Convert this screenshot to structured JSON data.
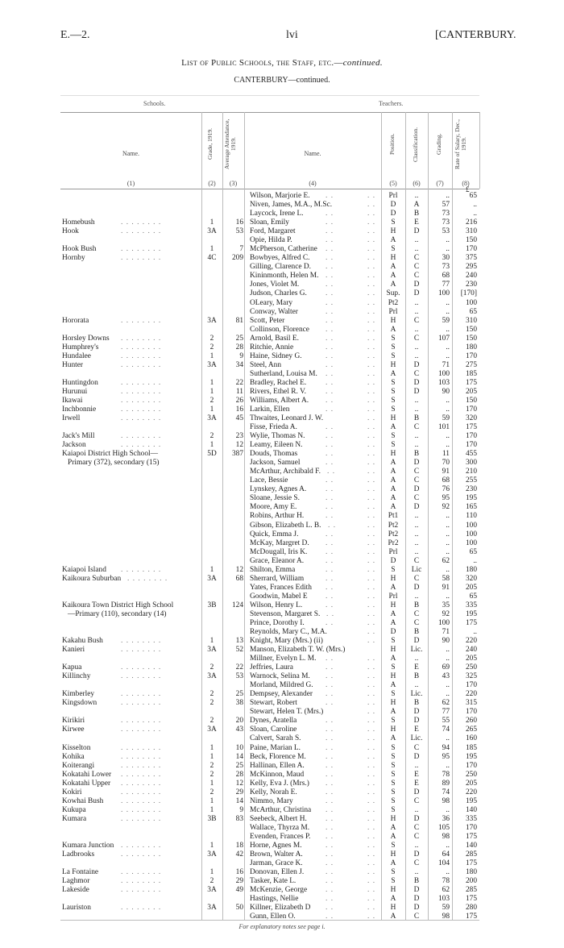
{
  "header": {
    "left": "E.—2.",
    "center": "lvi",
    "right": "[CANTERBURY."
  },
  "title": {
    "main": "List of Public Schools, the Staff, etc.—",
    "continued": "continued."
  },
  "subtitle": "CANTERBURY—continued.",
  "groups": {
    "schools": "Schools.",
    "teachers": "Teachers."
  },
  "columns": [
    {
      "label": "Name.",
      "num": "(1)"
    },
    {
      "label": "Grade, 1919.",
      "num": "(2)"
    },
    {
      "label": "Average Attendance, 1919.",
      "num": "(3)"
    },
    {
      "label": "Name.",
      "num": "(4)"
    },
    {
      "label": "Position.",
      "num": "(5)"
    },
    {
      "label": "Classification.",
      "num": "(6)"
    },
    {
      "label": "Grading.",
      "num": "(7)"
    },
    {
      "label": "Rate of Salary, Dec., 1919.",
      "num": "(8)"
    }
  ],
  "currency": "£",
  "rows": [
    {
      "school": "",
      "grade": "",
      "att": "",
      "teacher": "Wilson, Marjorie E.",
      "pos": "Prl",
      "cls": "..",
      "grd": "..",
      "sal": "65"
    },
    {
      "school": "",
      "grade": "",
      "att": "",
      "teacher": "Niven, James, M.A., M.Sc.",
      "pos": "D",
      "cls": "A",
      "grd": "57",
      "sal": ".."
    },
    {
      "school": "",
      "grade": "",
      "att": "",
      "teacher": "Laycock, Irene L.",
      "pos": "D",
      "cls": "B",
      "grd": "73",
      "sal": ".."
    },
    {
      "school": "Homebush",
      "grade": "1",
      "att": "16",
      "teacher": "Sloan, Emily",
      "pos": "S",
      "cls": "E",
      "grd": "73",
      "sal": "216"
    },
    {
      "school": "Hook",
      "grade": "3A",
      "att": "53",
      "teacher": "Ford, Margaret",
      "pos": "H",
      "cls": "D",
      "grd": "53",
      "sal": "310"
    },
    {
      "school": "",
      "grade": "",
      "att": "",
      "teacher": "Opie, Hilda P.",
      "pos": "A",
      "cls": "..",
      "grd": "..",
      "sal": "150"
    },
    {
      "school": "Hook Bush",
      "grade": "1",
      "att": "7",
      "teacher": "McPherson, Catherine",
      "pos": "S",
      "cls": "..",
      "grd": "..",
      "sal": "170"
    },
    {
      "school": "Hornby",
      "grade": "4C",
      "att": "209",
      "teacher": "Bowbyes, Alfred C.",
      "pos": "H",
      "cls": "C",
      "grd": "30",
      "sal": "375"
    },
    {
      "school": "",
      "grade": "",
      "att": "",
      "teacher": "Gilling, Clarence D.",
      "pos": "A",
      "cls": "C",
      "grd": "73",
      "sal": "295"
    },
    {
      "school": "",
      "grade": "",
      "att": "",
      "teacher": "Kininmonth, Helen M.",
      "pos": "A",
      "cls": "C",
      "grd": "68",
      "sal": "240"
    },
    {
      "school": "",
      "grade": "",
      "att": "",
      "teacher": "Jones, Violet M.",
      "pos": "A",
      "cls": "D",
      "grd": "77",
      "sal": "230"
    },
    {
      "school": "",
      "grade": "",
      "att": "",
      "teacher": "Judson, Charles G.",
      "pos": "Sup.",
      "cls": "D",
      "grd": "100",
      "sal": "[170]"
    },
    {
      "school": "",
      "grade": "",
      "att": "",
      "teacher": "OLeary, Mary",
      "pos": "Pt2",
      "cls": "..",
      "grd": "..",
      "sal": "100"
    },
    {
      "school": "",
      "grade": "",
      "att": "",
      "teacher": "Conway, Walter",
      "pos": "Prl",
      "cls": "..",
      "grd": "..",
      "sal": "65"
    },
    {
      "school": "Hororata",
      "grade": "3A",
      "att": "81",
      "teacher": "Scott, Peter",
      "pos": "H",
      "cls": "C",
      "grd": "59",
      "sal": "310"
    },
    {
      "school": "",
      "grade": "",
      "att": "",
      "teacher": "Collinson, Florence",
      "pos": "A",
      "cls": "..",
      "grd": "..",
      "sal": "150"
    },
    {
      "school": "Horsley Downs",
      "grade": "2",
      "att": "25",
      "teacher": "Arnold, Basil E.",
      "pos": "S",
      "cls": "C",
      "grd": "107",
      "sal": "150"
    },
    {
      "school": "Humphrey's",
      "grade": "2",
      "att": "28",
      "teacher": "Ritchie, Annie",
      "pos": "S",
      "cls": "..",
      "grd": "..",
      "sal": "180"
    },
    {
      "school": "Hundalee",
      "grade": "1",
      "att": "9",
      "teacher": "Haine, Sidney G.",
      "pos": "S",
      "cls": "..",
      "grd": "..",
      "sal": "170"
    },
    {
      "school": "Hunter",
      "grade": "3A",
      "att": "34",
      "teacher": "Steel, Ann",
      "pos": "H",
      "cls": "D",
      "grd": "71",
      "sal": "275"
    },
    {
      "school": "",
      "grade": "",
      "att": "",
      "teacher": "Sutherland, Louisa M.",
      "pos": "A",
      "cls": "C",
      "grd": "100",
      "sal": "185"
    },
    {
      "school": "Huntingdon",
      "grade": "1",
      "att": "22",
      "teacher": "Bradley, Rachel E.",
      "pos": "S",
      "cls": "D",
      "grd": "103",
      "sal": "175"
    },
    {
      "school": "Hurunui",
      "grade": "1",
      "att": "11",
      "teacher": "Rivers, Ethel R. V.",
      "pos": "S",
      "cls": "D",
      "grd": "90",
      "sal": "205"
    },
    {
      "school": "Ikawai",
      "grade": "2",
      "att": "26",
      "teacher": "Williams, Albert A.",
      "pos": "S",
      "cls": "..",
      "grd": "..",
      "sal": "150"
    },
    {
      "school": "Inchbonnie",
      "grade": "1",
      "att": "16",
      "teacher": "Larkin, Ellen",
      "pos": "S",
      "cls": "..",
      "grd": "..",
      "sal": "170"
    },
    {
      "school": "Irwell",
      "grade": "3A",
      "att": "45",
      "teacher": "Thwaites, Leonard J. W.",
      "pos": "H",
      "cls": "B",
      "grd": "59",
      "sal": "320"
    },
    {
      "school": "",
      "grade": "",
      "att": "",
      "teacher": "Fisse, Frieda A.",
      "pos": "A",
      "cls": "C",
      "grd": "101",
      "sal": "175"
    },
    {
      "school": "Jack's Mill",
      "grade": "2",
      "att": "23",
      "teacher": "Wylie, Thomas N.",
      "pos": "S",
      "cls": "..",
      "grd": "..",
      "sal": "170"
    },
    {
      "school": "Jackson",
      "grade": "1",
      "att": "12",
      "teacher": "Leamy, Eileen N.",
      "pos": "S",
      "cls": "..",
      "grd": "..",
      "sal": "170"
    },
    {
      "school": "Kaiapoi District High School—",
      "grade": "5D",
      "att": "387",
      "teacher": "Douds, Thomas",
      "pos": "H",
      "cls": "B",
      "grd": "11",
      "sal": "455",
      "noleader": true
    },
    {
      "school": "Primary (372), secondary (15)",
      "cont": true,
      "grade": "",
      "att": "",
      "teacher": "Jackson, Samuel",
      "pos": "A",
      "cls": "D",
      "grd": "70",
      "sal": "300"
    },
    {
      "school": "",
      "grade": "",
      "att": "",
      "teacher": "McArthur, Archibald F.",
      "pos": "A",
      "cls": "C",
      "grd": "91",
      "sal": "210"
    },
    {
      "school": "",
      "grade": "",
      "att": "",
      "teacher": "Lace, Bessie",
      "pos": "A",
      "cls": "C",
      "grd": "68",
      "sal": "255"
    },
    {
      "school": "",
      "grade": "",
      "att": "",
      "teacher": "Lynskey, Agnes A.",
      "pos": "A",
      "cls": "D",
      "grd": "76",
      "sal": "230"
    },
    {
      "school": "",
      "grade": "",
      "att": "",
      "teacher": "Sloane, Jessie S.",
      "pos": "A",
      "cls": "C",
      "grd": "95",
      "sal": "195"
    },
    {
      "school": "",
      "grade": "",
      "att": "",
      "teacher": "Moore, Amy E.",
      "pos": "A",
      "cls": "D",
      "grd": "92",
      "sal": "165"
    },
    {
      "school": "",
      "grade": "",
      "att": "",
      "teacher": "Robins, Arthur H.",
      "pos": "Pt1",
      "cls": "..",
      "grd": "..",
      "sal": "110"
    },
    {
      "school": "",
      "grade": "",
      "att": "",
      "teacher": "Gibson, Elizabeth L. B.",
      "pos": "Pt2",
      "cls": "..",
      "grd": "..",
      "sal": "100"
    },
    {
      "school": "",
      "grade": "",
      "att": "",
      "teacher": "Quick, Emma J.",
      "pos": "Pt2",
      "cls": "..",
      "grd": "..",
      "sal": "100"
    },
    {
      "school": "",
      "grade": "",
      "att": "",
      "teacher": "McKay, Margret D.",
      "pos": "Pr2",
      "cls": "..",
      "grd": "..",
      "sal": "100"
    },
    {
      "school": "",
      "grade": "",
      "att": "",
      "teacher": "McDougall, Iris K.",
      "pos": "Prl",
      "cls": "..",
      "grd": "..",
      "sal": "65"
    },
    {
      "school": "",
      "grade": "",
      "att": "",
      "teacher": "Grace, Eleanor A.",
      "pos": "D",
      "cls": "C",
      "grd": "62",
      "sal": ".."
    },
    {
      "school": "Kaiapoi Island",
      "grade": "1",
      "att": "12",
      "teacher": "Shilton, Emma",
      "pos": "S",
      "cls": "Lic",
      "grd": "..",
      "sal": "180"
    },
    {
      "school": "Kaikoura Suburban",
      "grade": "3A",
      "att": "68",
      "teacher": "Sherrard, William",
      "pos": "H",
      "cls": "C",
      "grd": "58",
      "sal": "320"
    },
    {
      "school": "",
      "grade": "",
      "att": "",
      "teacher": "Yates, Frances Edith",
      "pos": "A",
      "cls": "D",
      "grd": "91",
      "sal": "205"
    },
    {
      "school": "",
      "grade": "",
      "att": "",
      "teacher": "Goodwin, Mabel E",
      "pos": "Prl",
      "cls": "..",
      "grd": "..",
      "sal": "65"
    },
    {
      "school": "Kaikoura Town District High School",
      "grade": "3B",
      "att": "124",
      "teacher": "Wilson, Henry L.",
      "pos": "H",
      "cls": "B",
      "grd": "35",
      "sal": "335",
      "noleader": true
    },
    {
      "school": "—Primary (110), secondary (14)",
      "cont": true,
      "grade": "",
      "att": "",
      "teacher": "Stevenson, Margaret S.",
      "pos": "A",
      "cls": "C",
      "grd": "92",
      "sal": "195"
    },
    {
      "school": "",
      "grade": "",
      "att": "",
      "teacher": "Prince, Dorothy I.",
      "pos": "A",
      "cls": "C",
      "grd": "100",
      "sal": "175"
    },
    {
      "school": "",
      "grade": "",
      "att": "",
      "teacher": "Reynolds, Mary C., M.A.",
      "pos": "D",
      "cls": "B",
      "grd": "71",
      "sal": ".."
    },
    {
      "school": "Kakahu Bush",
      "grade": "1",
      "att": "13",
      "teacher": "Knight, Mary (Mrs.) (ii)",
      "pos": "S",
      "cls": "D",
      "grd": "90",
      "sal": "220"
    },
    {
      "school": "Kanieri",
      "grade": "3A",
      "att": "52",
      "teacher": "Manson, Elizabeth T. W. (Mrs.)",
      "pos": "H",
      "cls": "Lic.",
      "grd": "..",
      "sal": "240",
      "noteacherleader": true
    },
    {
      "school": "",
      "grade": "",
      "att": "",
      "teacher": "Millner, Evelyn L. M.",
      "pos": "A",
      "cls": "..",
      "grd": "..",
      "sal": "205"
    },
    {
      "school": "Kapua",
      "grade": "2",
      "att": "22",
      "teacher": "Jeffries, Laura",
      "pos": "S",
      "cls": "E",
      "grd": "69",
      "sal": "250"
    },
    {
      "school": "Killinchy",
      "grade": "3A",
      "att": "53",
      "teacher": "Warnock, Selina M.",
      "pos": "H",
      "cls": "B",
      "grd": "43",
      "sal": "325"
    },
    {
      "school": "",
      "grade": "",
      "att": "",
      "teacher": "Morland, Mildred G.",
      "pos": "A",
      "cls": "..",
      "grd": "..",
      "sal": "170"
    },
    {
      "school": "Kimberley",
      "grade": "2",
      "att": "25",
      "teacher": "Dempsey, Alexander",
      "pos": "S",
      "cls": "Lic.",
      "grd": "..",
      "sal": "220"
    },
    {
      "school": "Kingsdown",
      "grade": "2",
      "att": "38",
      "teacher": "Stewart, Robert",
      "pos": "H",
      "cls": "B",
      "grd": "62",
      "sal": "315"
    },
    {
      "school": "",
      "grade": "",
      "att": "",
      "teacher": "Stewart, Helen T. (Mrs.)",
      "pos": "A",
      "cls": "D",
      "grd": "77",
      "sal": "170"
    },
    {
      "school": "Kirikiri",
      "grade": "2",
      "att": "20",
      "teacher": "Dynes, Aratella",
      "pos": "S",
      "cls": "D",
      "grd": "55",
      "sal": "260"
    },
    {
      "school": "Kirwee",
      "grade": "3A",
      "att": "43",
      "teacher": "Sloan, Caroline",
      "pos": "H",
      "cls": "E",
      "grd": "74",
      "sal": "265"
    },
    {
      "school": "",
      "grade": "",
      "att": "",
      "teacher": "Calvert, Sarah S.",
      "pos": "A",
      "cls": "Lic.",
      "grd": "..",
      "sal": "160"
    },
    {
      "school": "Kisselton",
      "grade": "1",
      "att": "10",
      "teacher": "Paine, Marian L.",
      "pos": "S",
      "cls": "C",
      "grd": "94",
      "sal": "185"
    },
    {
      "school": "Kohika",
      "grade": "1",
      "att": "14",
      "teacher": "Beck, Florence M.",
      "pos": "S",
      "cls": "D",
      "grd": "95",
      "sal": "195"
    },
    {
      "school": "Koiterangi",
      "grade": "2",
      "att": "25",
      "teacher": "Hallinan, Ellen A.",
      "pos": "S",
      "cls": "..",
      "grd": "..",
      "sal": "170"
    },
    {
      "school": "Kokatahi Lower",
      "grade": "2",
      "att": "28",
      "teacher": "McKinnon, Maud",
      "pos": "S",
      "cls": "E",
      "grd": "78",
      "sal": "250"
    },
    {
      "school": "Kokatahi Upper",
      "grade": "1",
      "att": "12",
      "teacher": "Kelly, Eva J. (Mrs.)",
      "pos": "S",
      "cls": "E",
      "grd": "89",
      "sal": "205"
    },
    {
      "school": "Kokiri",
      "grade": "2",
      "att": "29",
      "teacher": "Kelly, Norah E.",
      "pos": "S",
      "cls": "D",
      "grd": "74",
      "sal": "220"
    },
    {
      "school": "Kowhai Bush",
      "grade": "1",
      "att": "14",
      "teacher": "Nimmo, Mary",
      "pos": "S",
      "cls": "C",
      "grd": "98",
      "sal": "195"
    },
    {
      "school": "Kukupa",
      "grade": "1",
      "att": "9",
      "teacher": "McArthur, Christina",
      "pos": "S",
      "cls": "..",
      "grd": "..",
      "sal": "140"
    },
    {
      "school": "Kumara",
      "grade": "3B",
      "att": "83",
      "teacher": "Seebeck, Albert H.",
      "pos": "H",
      "cls": "D",
      "grd": "36",
      "sal": "335"
    },
    {
      "school": "",
      "grade": "",
      "att": "",
      "teacher": "Wallace, Thyrza M.",
      "pos": "A",
      "cls": "C",
      "grd": "105",
      "sal": "170"
    },
    {
      "school": "",
      "grade": "",
      "att": "",
      "teacher": "Evenden, Frances P.",
      "pos": "A",
      "cls": "C",
      "grd": "98",
      "sal": "175"
    },
    {
      "school": "Kumara Junction",
      "grade": "1",
      "att": "18",
      "teacher": "Horne, Agnes M.",
      "pos": "S",
      "cls": "..",
      "grd": "..",
      "sal": "140"
    },
    {
      "school": "Ladbrooks",
      "grade": "3A",
      "att": "42",
      "teacher": "Brown, Walter A.",
      "pos": "H",
      "cls": "D",
      "grd": "64",
      "sal": "285"
    },
    {
      "school": "",
      "grade": "",
      "att": "",
      "teacher": "Jarman, Grace K.",
      "pos": "A",
      "cls": "C",
      "grd": "104",
      "sal": "175"
    },
    {
      "school": "La Fontaine",
      "grade": "1",
      "att": "16",
      "teacher": "Donovan, Ellen J.",
      "pos": "S",
      "cls": "..",
      "grd": "..",
      "sal": "180"
    },
    {
      "school": "Laghmor",
      "grade": "2",
      "att": "29",
      "teacher": "Tasker, Kate L.",
      "pos": "S",
      "cls": "B",
      "grd": "78",
      "sal": "200"
    },
    {
      "school": "Lakeside",
      "grade": "3A",
      "att": "49",
      "teacher": "McKenzie, George",
      "pos": "H",
      "cls": "D",
      "grd": "62",
      "sal": "285"
    },
    {
      "school": "",
      "grade": "",
      "att": "",
      "teacher": "Hastings, Nellie",
      "pos": "A",
      "cls": "D",
      "grd": "103",
      "sal": "175"
    },
    {
      "school": "Lauriston",
      "grade": "3A",
      "att": "50",
      "teacher": "Killner, Elizabeth D",
      "pos": "H",
      "cls": "D",
      "grd": "59",
      "sal": "280"
    },
    {
      "school": "",
      "grade": "",
      "att": "",
      "teacher": "Gunn, Ellen O.",
      "pos": "A",
      "cls": "C",
      "grd": "98",
      "sal": "175"
    }
  ],
  "footer": "For explanatory notes see page i."
}
